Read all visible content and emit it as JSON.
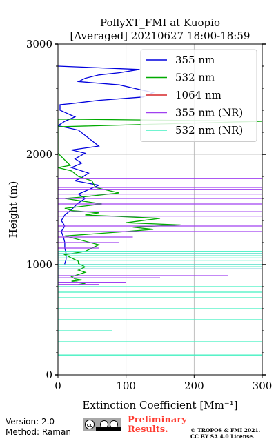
{
  "chart_data": {
    "type": "line",
    "title": "PollyXT_FMI at Kuopio",
    "subtitle": "[Averaged] 20210627 18:00-18:59",
    "xlabel": "Extinction Coefficient [Mm⁻¹]",
    "ylabel": "Height (m)",
    "xlim": [
      0,
      300
    ],
    "ylim": [
      0,
      3000
    ],
    "xticks": [
      "0",
      "100",
      "200",
      "300"
    ],
    "yticks": [
      "0",
      "1000",
      "2000",
      "3000"
    ],
    "grid": true,
    "legend_position": "top-right",
    "series": [
      {
        "name": "355 nm",
        "color": "#0000dd",
        "x": [
          0,
          120,
          90,
          60,
          40,
          30,
          90,
          140,
          125,
          60,
          20,
          3,
          3,
          25,
          10,
          0,
          30,
          60,
          20,
          40,
          25,
          35,
          20,
          45,
          35,
          25,
          60,
          45,
          30,
          40,
          30,
          20,
          10,
          5,
          10,
          5,
          8,
          10,
          10,
          12,
          12,
          10,
          10
        ],
        "y": [
          2800,
          2770,
          2740,
          2720,
          2690,
          2660,
          2630,
          2560,
          2520,
          2490,
          2460,
          2450,
          2400,
          2340,
          2300,
          2260,
          2220,
          2075,
          2040,
          2010,
          1960,
          1920,
          1880,
          1830,
          1790,
          1760,
          1720,
          1680,
          1640,
          1600,
          1560,
          1500,
          1450,
          1400,
          1350,
          1300,
          1250,
          1200,
          1150,
          1100,
          1050,
          1010,
          1000
        ]
      },
      {
        "name": "532 nm",
        "color": "#00aa00",
        "x": [
          0,
          0,
          300,
          0,
          0,
          18,
          0,
          20,
          30,
          50,
          55,
          90,
          30,
          10,
          65,
          10,
          20,
          60,
          40,
          150,
          100,
          180,
          110,
          140,
          100,
          10,
          60,
          40,
          10,
          30,
          30,
          40,
          30,
          40,
          30,
          20,
          25,
          35,
          20,
          30,
          40,
          30
        ],
        "y": [
          2220,
          2250,
          2300,
          2320,
          2010,
          1900,
          1880,
          1850,
          1800,
          1760,
          1700,
          1650,
          1610,
          1600,
          1550,
          1510,
          1490,
          1470,
          1450,
          1420,
          1380,
          1360,
          1340,
          1320,
          1300,
          1260,
          1180,
          1120,
          1090,
          1030,
          1010,
          980,
          950,
          930,
          910,
          890,
          870,
          860,
          850,
          840,
          830,
          820
        ]
      },
      {
        "name": "1064 nm",
        "color": "#d62728",
        "x": [],
        "y": []
      },
      {
        "name": "355 nm (NR)",
        "color": "#a040f0",
        "x": [
          0,
          300,
          0,
          0,
          300,
          0,
          0,
          300,
          0,
          0,
          300,
          0,
          0,
          300,
          0,
          0,
          300,
          0,
          0,
          300,
          0,
          0,
          300,
          0,
          0,
          300,
          0,
          0,
          300,
          0,
          0,
          110,
          0,
          0,
          90,
          0,
          0,
          60,
          0,
          0,
          300,
          0,
          0,
          300,
          0,
          0,
          300,
          0,
          0,
          250,
          0,
          0,
          150,
          0,
          0,
          100,
          0,
          0,
          60,
          0
        ],
        "y": [
          1780,
          1780,
          1780,
          1700,
          1700,
          1700,
          1680,
          1680,
          1680,
          1640,
          1640,
          1640,
          1600,
          1600,
          1600,
          1550,
          1550,
          1550,
          1480,
          1480,
          1480,
          1440,
          1440,
          1440,
          1350,
          1350,
          1350,
          1300,
          1300,
          1300,
          1250,
          1250,
          1250,
          1200,
          1200,
          1200,
          1150,
          1150,
          1150,
          1100,
          1100,
          1100,
          1000,
          1000,
          1000,
          960,
          960,
          960,
          900,
          900,
          900,
          880,
          880,
          880,
          840,
          840,
          840,
          820,
          820,
          820
        ]
      },
      {
        "name": "532 nm (NR)",
        "color": "#40f0c0",
        "x": [
          0,
          300,
          0,
          0,
          300,
          0,
          0,
          300,
          0,
          0,
          300,
          0,
          0,
          300,
          0,
          0,
          300,
          0,
          0,
          300,
          0,
          0,
          300,
          0,
          0,
          300,
          0,
          0,
          300,
          0,
          0,
          300,
          0,
          0,
          300,
          0,
          0,
          300,
          0,
          0,
          80,
          0,
          0,
          300,
          0,
          0,
          300,
          0
        ],
        "y": [
          1120,
          1120,
          1120,
          1100,
          1100,
          1100,
          1080,
          1080,
          1080,
          1060,
          1060,
          1060,
          1040,
          1040,
          1040,
          1000,
          1000,
          1000,
          980,
          980,
          980,
          960,
          960,
          960,
          800,
          800,
          800,
          750,
          750,
          750,
          700,
          700,
          700,
          600,
          600,
          600,
          500,
          500,
          500,
          400,
          400,
          400,
          300,
          300,
          300,
          180,
          180,
          180
        ]
      }
    ]
  },
  "footer": {
    "version": "Version: 2.0",
    "method": "Method: Raman",
    "preliminary_line1": "Preliminary",
    "preliminary_line2": "Results.",
    "copyright_line1": "© TROPOS & FMI 2021.",
    "copyright_line2": "CC BY SA 4.0 License."
  },
  "license_badge": {
    "cc": "cc",
    "icon": "cc-by-sa-icon"
  }
}
